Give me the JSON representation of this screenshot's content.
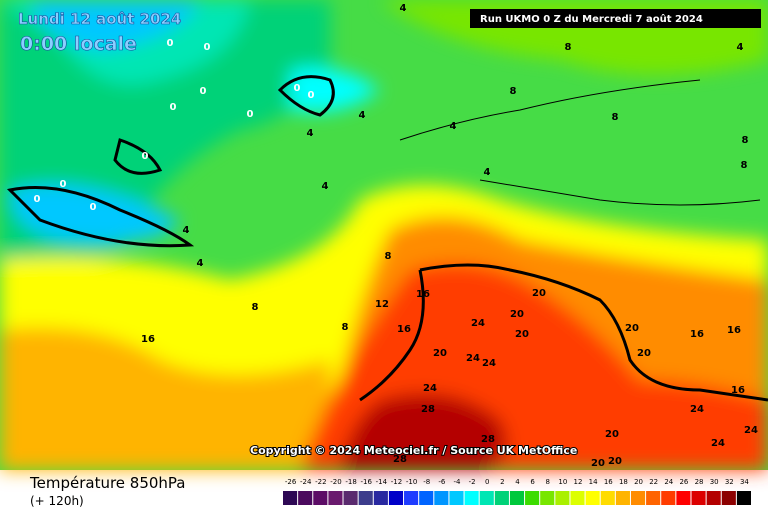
{
  "header": {
    "date": "Lundi 12 août 2024",
    "time": "0:00 locale",
    "run": "Run UKMO 0 Z du Mercredi 7 août 2024"
  },
  "copyright": "Copyright © 2024 Meteociel.fr / Source UK MetOffice",
  "footer": {
    "title": "Température 850hPa",
    "lead": "(+ 120h)"
  },
  "scale": {
    "values": [
      -26,
      -24,
      -22,
      -20,
      -18,
      -16,
      -14,
      -12,
      -10,
      -8,
      -6,
      -4,
      -2,
      0,
      2,
      4,
      6,
      8,
      10,
      12,
      14,
      16,
      18,
      20,
      22,
      24,
      26,
      28,
      30,
      32,
      34
    ],
    "colors": [
      "#2e0854",
      "#4b0a5e",
      "#5c0c66",
      "#6a1a6e",
      "#5a2a6e",
      "#3c3c8c",
      "#2828a0",
      "#0000c8",
      "#1e3cff",
      "#0064ff",
      "#0096ff",
      "#00c8ff",
      "#00ffff",
      "#00e6b4",
      "#00d278",
      "#00c83c",
      "#3cdc00",
      "#78e600",
      "#aaf000",
      "#dcff00",
      "#ffff00",
      "#ffdc00",
      "#ffb400",
      "#ff8c00",
      "#ff6400",
      "#ff3c00",
      "#ff0000",
      "#dc0000",
      "#b40000",
      "#8c0000",
      "#000000"
    ]
  },
  "contour_labels": [
    0,
    0,
    0,
    0,
    0,
    0,
    0,
    0,
    0,
    0,
    0,
    4,
    4,
    4,
    4,
    4,
    4,
    4,
    4,
    4,
    8,
    8,
    8,
    8,
    8,
    8,
    8,
    8,
    12,
    16,
    16,
    16,
    16,
    16,
    16,
    20,
    20,
    20,
    20,
    20,
    20,
    24,
    24,
    24,
    24,
    24,
    24,
    24,
    28,
    28,
    28,
    20,
    20,
    20
  ]
}
